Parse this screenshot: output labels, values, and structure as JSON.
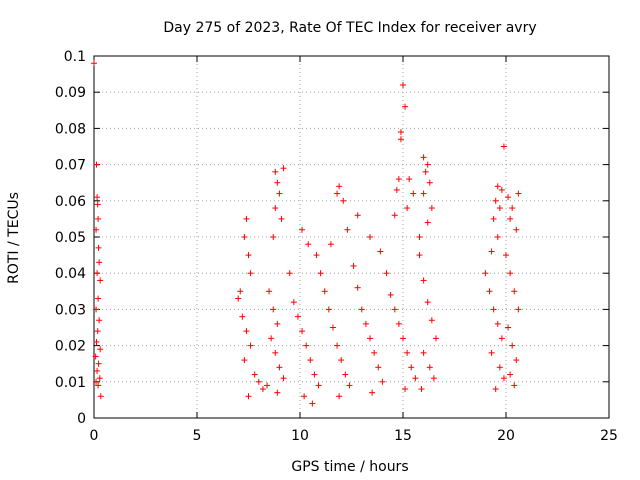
{
  "chart_data": {
    "type": "scatter",
    "title": "Day 275 of 2023, Rate Of TEC Index for receiver avry",
    "xlabel": "GPS time / hours",
    "ylabel": "ROTI / TECUs",
    "xlim": [
      0,
      25
    ],
    "ylim": [
      0,
      0.1
    ],
    "xticks": [
      "0",
      "5",
      "10",
      "15",
      "20",
      "25"
    ],
    "yticks": [
      "0",
      "0.01",
      "0.02",
      "0.03",
      "0.04",
      "0.05",
      "0.06",
      "0.07",
      "0.08",
      "0.09",
      "0.1"
    ],
    "grid": true,
    "marker": "+",
    "color": "#ff0000",
    "series": [
      {
        "points": [
          [
            0.0,
            0.098
          ],
          [
            0.12,
            0.07
          ],
          [
            0.15,
            0.061
          ],
          [
            0.18,
            0.059
          ],
          [
            0.2,
            0.055
          ],
          [
            0.1,
            0.052
          ],
          [
            0.22,
            0.047
          ],
          [
            0.25,
            0.043
          ],
          [
            0.15,
            0.04
          ],
          [
            0.3,
            0.038
          ],
          [
            0.2,
            0.033
          ],
          [
            0.1,
            0.03
          ],
          [
            0.25,
            0.027
          ],
          [
            0.18,
            0.024
          ],
          [
            0.12,
            0.021
          ],
          [
            0.3,
            0.019
          ],
          [
            0.08,
            0.017
          ],
          [
            0.22,
            0.015
          ],
          [
            0.15,
            0.013
          ],
          [
            0.28,
            0.011
          ],
          [
            0.1,
            0.01
          ],
          [
            0.2,
            0.009
          ],
          [
            0.33,
            0.006
          ],
          [
            7.0,
            0.033
          ],
          [
            7.2,
            0.028
          ],
          [
            7.4,
            0.024
          ],
          [
            7.6,
            0.02
          ],
          [
            7.3,
            0.016
          ],
          [
            7.8,
            0.012
          ],
          [
            8.0,
            0.01
          ],
          [
            8.2,
            0.008
          ],
          [
            7.5,
            0.006
          ],
          [
            7.4,
            0.055
          ],
          [
            7.3,
            0.05
          ],
          [
            7.5,
            0.045
          ],
          [
            7.6,
            0.04
          ],
          [
            7.1,
            0.035
          ],
          [
            8.5,
            0.035
          ],
          [
            8.7,
            0.03
          ],
          [
            8.9,
            0.026
          ],
          [
            8.6,
            0.022
          ],
          [
            8.8,
            0.018
          ],
          [
            9.0,
            0.014
          ],
          [
            9.2,
            0.011
          ],
          [
            8.4,
            0.009
          ],
          [
            8.9,
            0.007
          ],
          [
            8.8,
            0.068
          ],
          [
            8.9,
            0.065
          ],
          [
            9.0,
            0.062
          ],
          [
            9.2,
            0.069
          ],
          [
            8.8,
            0.058
          ],
          [
            9.1,
            0.055
          ],
          [
            8.7,
            0.05
          ],
          [
            9.5,
            0.04
          ],
          [
            9.7,
            0.032
          ],
          [
            9.9,
            0.028
          ],
          [
            10.1,
            0.024
          ],
          [
            10.3,
            0.02
          ],
          [
            10.5,
            0.016
          ],
          [
            10.7,
            0.012
          ],
          [
            10.9,
            0.009
          ],
          [
            10.2,
            0.006
          ],
          [
            10.6,
            0.004
          ],
          [
            10.1,
            0.052
          ],
          [
            10.4,
            0.048
          ],
          [
            10.8,
            0.045
          ],
          [
            11.0,
            0.04
          ],
          [
            11.2,
            0.035
          ],
          [
            11.4,
            0.03
          ],
          [
            11.6,
            0.025
          ],
          [
            11.8,
            0.02
          ],
          [
            12.0,
            0.016
          ],
          [
            12.2,
            0.012
          ],
          [
            12.4,
            0.009
          ],
          [
            11.9,
            0.006
          ],
          [
            11.9,
            0.064
          ],
          [
            11.8,
            0.062
          ],
          [
            12.1,
            0.06
          ],
          [
            12.3,
            0.052
          ],
          [
            11.5,
            0.048
          ],
          [
            12.6,
            0.042
          ],
          [
            12.8,
            0.036
          ],
          [
            13.0,
            0.03
          ],
          [
            13.2,
            0.026
          ],
          [
            13.4,
            0.022
          ],
          [
            13.6,
            0.018
          ],
          [
            13.8,
            0.014
          ],
          [
            14.0,
            0.01
          ],
          [
            13.5,
            0.007
          ],
          [
            12.8,
            0.056
          ],
          [
            13.4,
            0.05
          ],
          [
            13.9,
            0.046
          ],
          [
            14.2,
            0.04
          ],
          [
            14.4,
            0.034
          ],
          [
            14.6,
            0.03
          ],
          [
            14.8,
            0.026
          ],
          [
            15.0,
            0.022
          ],
          [
            15.2,
            0.018
          ],
          [
            15.4,
            0.014
          ],
          [
            15.6,
            0.011
          ],
          [
            15.1,
            0.008
          ],
          [
            14.9,
            0.079
          ],
          [
            14.9,
            0.077
          ],
          [
            15.0,
            0.092
          ],
          [
            15.1,
            0.086
          ],
          [
            14.8,
            0.066
          ],
          [
            15.3,
            0.066
          ],
          [
            14.7,
            0.063
          ],
          [
            15.5,
            0.062
          ],
          [
            15.2,
            0.058
          ],
          [
            14.6,
            0.056
          ],
          [
            15.8,
            0.045
          ],
          [
            16.0,
            0.038
          ],
          [
            16.2,
            0.032
          ],
          [
            16.4,
            0.027
          ],
          [
            16.6,
            0.022
          ],
          [
            16.0,
            0.018
          ],
          [
            16.3,
            0.014
          ],
          [
            16.5,
            0.011
          ],
          [
            15.9,
            0.008
          ],
          [
            16.0,
            0.072
          ],
          [
            16.2,
            0.07
          ],
          [
            16.1,
            0.068
          ],
          [
            16.3,
            0.065
          ],
          [
            16.0,
            0.062
          ],
          [
            16.4,
            0.058
          ],
          [
            16.2,
            0.054
          ],
          [
            15.8,
            0.05
          ],
          [
            19.0,
            0.04
          ],
          [
            19.2,
            0.035
          ],
          [
            19.4,
            0.03
          ],
          [
            19.6,
            0.026
          ],
          [
            19.8,
            0.022
          ],
          [
            19.3,
            0.018
          ],
          [
            19.7,
            0.014
          ],
          [
            19.9,
            0.011
          ],
          [
            19.5,
            0.008
          ],
          [
            19.6,
            0.064
          ],
          [
            19.8,
            0.063
          ],
          [
            19.9,
            0.075
          ],
          [
            19.5,
            0.06
          ],
          [
            19.7,
            0.058
          ],
          [
            19.4,
            0.055
          ],
          [
            19.6,
            0.05
          ],
          [
            19.3,
            0.046
          ],
          [
            20.0,
            0.045
          ],
          [
            20.2,
            0.04
          ],
          [
            20.4,
            0.035
          ],
          [
            20.6,
            0.03
          ],
          [
            20.1,
            0.025
          ],
          [
            20.3,
            0.02
          ],
          [
            20.5,
            0.016
          ],
          [
            20.2,
            0.012
          ],
          [
            20.4,
            0.009
          ],
          [
            20.1,
            0.061
          ],
          [
            20.3,
            0.058
          ],
          [
            20.6,
            0.062
          ],
          [
            20.2,
            0.055
          ],
          [
            20.5,
            0.052
          ]
        ]
      }
    ]
  }
}
